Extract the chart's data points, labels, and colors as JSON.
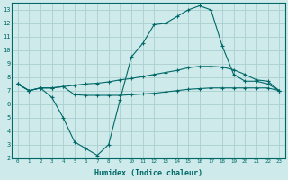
{
  "background_color": "#ceeaea",
  "line_color": "#006868",
  "grid_color": "#aacfcf",
  "xlabel": "Humidex (Indice chaleur)",
  "xlim": [
    -0.5,
    23.5
  ],
  "ylim": [
    2,
    13.5
  ],
  "yticks": [
    2,
    3,
    4,
    5,
    6,
    7,
    8,
    9,
    10,
    11,
    12,
    13
  ],
  "xtick_labels": [
    "0",
    "1",
    "2",
    "3",
    "4",
    "5",
    "6",
    "7",
    "8",
    "9",
    "10",
    "11",
    "12",
    "13",
    "14",
    "15",
    "16",
    "17",
    "18",
    "19",
    "20",
    "21",
    "22",
    "23"
  ],
  "curve1_x": [
    0,
    1,
    2,
    3,
    4,
    5,
    6,
    7,
    8,
    9,
    10,
    11,
    12,
    13,
    14,
    15,
    16,
    17,
    18,
    19,
    20,
    21,
    22,
    23
  ],
  "curve1_y": [
    7.5,
    7.0,
    7.2,
    7.2,
    7.3,
    7.4,
    7.5,
    7.55,
    7.65,
    7.8,
    7.9,
    8.05,
    8.2,
    8.35,
    8.5,
    8.7,
    8.8,
    8.8,
    8.75,
    8.55,
    8.2,
    7.8,
    7.7,
    7.0
  ],
  "curve2_x": [
    0,
    1,
    2,
    3,
    4,
    5,
    6,
    7,
    8,
    9,
    10,
    11,
    12,
    13,
    14,
    15,
    16,
    17,
    18,
    19,
    20,
    21,
    22,
    23
  ],
  "curve2_y": [
    7.5,
    7.0,
    7.2,
    6.5,
    5.0,
    3.2,
    2.7,
    2.2,
    3.0,
    6.3,
    9.5,
    10.5,
    11.9,
    12.0,
    12.5,
    13.0,
    13.3,
    13.0,
    10.3,
    8.2,
    7.7,
    7.7,
    7.5,
    7.0
  ],
  "curve3_x": [
    0,
    1,
    2,
    3,
    4,
    5,
    6,
    7,
    8,
    9,
    10,
    11,
    12,
    13,
    14,
    15,
    16,
    17,
    18,
    19,
    20,
    21,
    22,
    23
  ],
  "curve3_y": [
    7.5,
    7.0,
    7.2,
    7.2,
    7.3,
    6.7,
    6.65,
    6.65,
    6.65,
    6.65,
    6.7,
    6.75,
    6.8,
    6.9,
    7.0,
    7.1,
    7.15,
    7.2,
    7.2,
    7.2,
    7.2,
    7.2,
    7.2,
    7.0
  ]
}
